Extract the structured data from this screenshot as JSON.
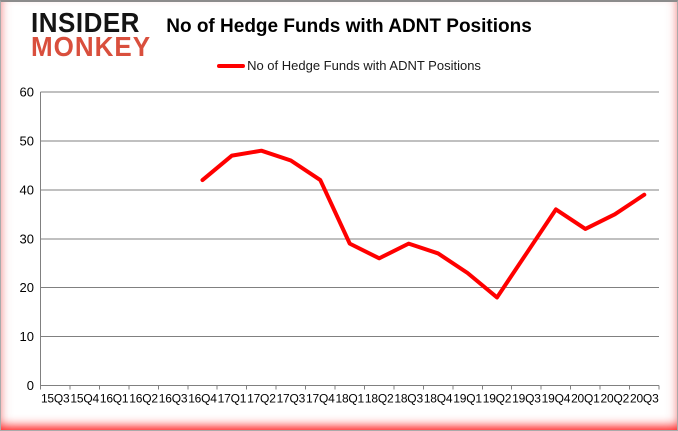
{
  "brand": {
    "line1": "INSIDER",
    "line2": "MONKEY",
    "line1_color": "#141414",
    "line2_color": "#d94f3d"
  },
  "header": {
    "title": "No of Hedge Funds with ADNT Positions"
  },
  "legend": {
    "label": "No of Hedge Funds with ADNT Positions",
    "line_color": "#ff0000"
  },
  "chart_data": {
    "type": "line",
    "title": "No of Hedge Funds with ADNT Positions",
    "categories": [
      "15Q3",
      "15Q4",
      "16Q1",
      "16Q2",
      "16Q3",
      "16Q4",
      "17Q1",
      "17Q2",
      "17Q3",
      "17Q4",
      "18Q1",
      "18Q2",
      "18Q3",
      "18Q4",
      "19Q1",
      "19Q2",
      "19Q3",
      "19Q4",
      "20Q1",
      "20Q2",
      "20Q3"
    ],
    "series": [
      {
        "name": "No of Hedge Funds with ADNT Positions",
        "color": "#ff0000",
        "values": [
          null,
          null,
          null,
          null,
          null,
          42,
          47,
          48,
          46,
          42,
          29,
          26,
          29,
          27,
          23,
          18,
          27,
          36,
          32,
          35,
          39
        ]
      }
    ],
    "xlabel": "",
    "ylabel": "",
    "ylim": [
      0,
      60
    ],
    "ytick_step": 10,
    "grid": true,
    "legend_position": "top",
    "gridline_color": "#808080",
    "axis_color": "#808080",
    "tick_label_color": "#000000",
    "tick_font_size": 13,
    "x_tick_font_size": 12
  }
}
